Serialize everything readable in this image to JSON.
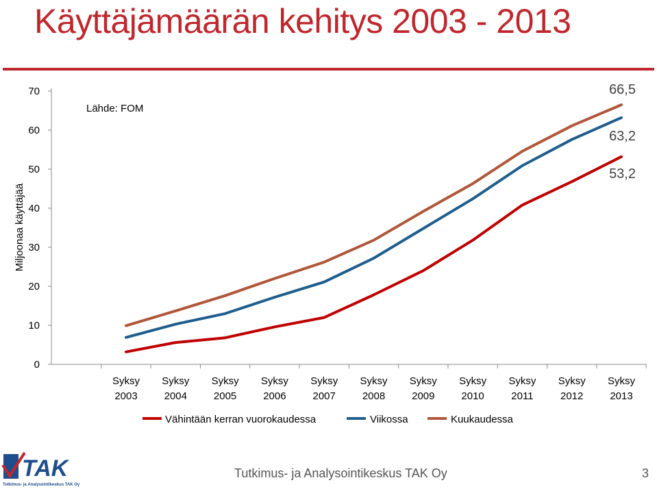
{
  "slide": {
    "title": "Käyttäjämäärän kehitys 2003 - 2013",
    "footer": "Tutkimus- ja Analysointikeskus TAK Oy",
    "page_number": "3",
    "logo": {
      "text": "TAK",
      "tagline": "Tutkimus- ja Analysointikeskus TAK Oy",
      "colors": {
        "primary": "#1f4e8c",
        "accent": "#c0272d"
      }
    }
  },
  "chart_data": {
    "type": "line",
    "title": "",
    "source_note": "Lähde: FOM",
    "ylabel": "Miljoonaa käyttäjää",
    "xlabel": "",
    "ylim": [
      0,
      70
    ],
    "yticks": [
      0,
      10,
      20,
      30,
      40,
      50,
      60,
      70
    ],
    "grid": false,
    "legend_position": "bottom",
    "categories": [
      [
        "Syksy",
        "2003"
      ],
      [
        "Syksy",
        "2004"
      ],
      [
        "Syksy",
        "2005"
      ],
      [
        "Syksy",
        "2006"
      ],
      [
        "Syksy",
        "2007"
      ],
      [
        "Syksy",
        "2008"
      ],
      [
        "Syksy",
        "2009"
      ],
      [
        "Syksy",
        "2010"
      ],
      [
        "Syksy",
        "2011"
      ],
      [
        "Syksy",
        "2012"
      ],
      [
        "Syksy",
        "2013"
      ]
    ],
    "series": [
      {
        "name": "Vähintään kerran vuorokaudessa",
        "color": "#c00000",
        "values": [
          3.2,
          5.6,
          6.8,
          9.6,
          12.0,
          17.8,
          24.0,
          31.8,
          40.8,
          46.8,
          53.2
        ],
        "end_label": "53,2"
      },
      {
        "name": "Viikossa",
        "color": "#1f5e8c",
        "values": [
          6.9,
          10.3,
          13.0,
          17.2,
          21.1,
          27.2,
          34.8,
          42.4,
          50.9,
          57.6,
          63.2
        ],
        "end_label": "63,2"
      },
      {
        "name": "Kuukaudessa",
        "color": "#b0573a",
        "values": [
          9.9,
          13.7,
          17.6,
          22.0,
          26.2,
          31.8,
          39.2,
          46.3,
          54.6,
          61.1,
          66.5
        ],
        "end_label": "66,5"
      }
    ]
  }
}
